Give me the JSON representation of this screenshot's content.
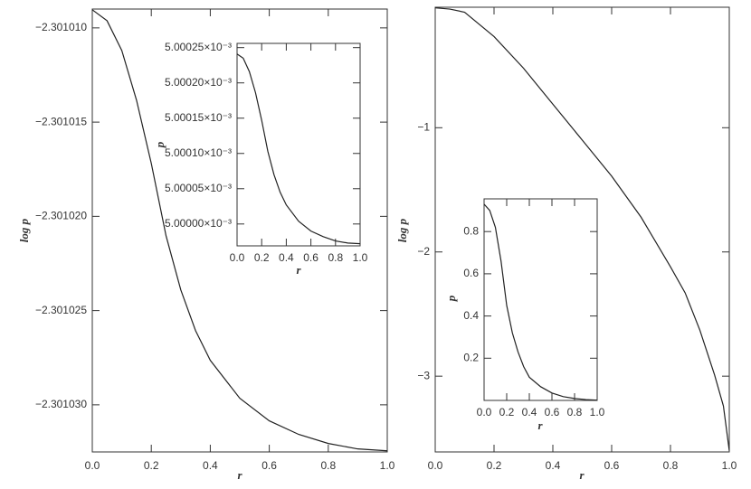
{
  "chart_data": [
    {
      "type": "line",
      "x_label": "r",
      "y_label": "log p",
      "x": [
        0,
        0.05,
        0.1,
        0.15,
        0.2,
        0.25,
        0.3,
        0.35,
        0.4,
        0.5,
        0.6,
        0.7,
        0.8,
        0.9,
        1.0
      ],
      "values": [
        -2.30100904,
        -2.30100962,
        -2.3010112,
        -2.30101384,
        -2.30101719,
        -2.30102103,
        -2.3010239,
        -2.30102606,
        -2.30102764,
        -2.30102965,
        -2.30103085,
        -2.30103157,
        -2.30103205,
        -2.30103234,
        -2.30103244
      ],
      "color": "#222222",
      "xlim": [
        0,
        1
      ],
      "ylim": [
        -2.3010325,
        -2.301009
      ],
      "xticks": [
        {
          "value": 0,
          "label": "0.0"
        },
        {
          "value": 0.2,
          "label": "0.2"
        },
        {
          "value": 0.4,
          "label": "0.4"
        },
        {
          "value": 0.6,
          "label": "0.6"
        },
        {
          "value": 0.8,
          "label": "0.8"
        },
        {
          "value": 1,
          "label": "1.0"
        }
      ],
      "yticks": [
        {
          "value": -2.30101,
          "label": "−2.301010"
        },
        {
          "value": -2.301015,
          "label": "−2.301015"
        },
        {
          "value": -2.30102,
          "label": "−2.301020"
        },
        {
          "value": -2.301025,
          "label": "−2.301025"
        },
        {
          "value": -2.30103,
          "label": "−2.301030"
        }
      ]
    },
    {
      "type": "line",
      "x_label": "r",
      "y_label": "p",
      "x": [
        0,
        0.05,
        0.1,
        0.15,
        0.2,
        0.25,
        0.3,
        0.35,
        0.4,
        0.5,
        0.6,
        0.7,
        0.8,
        0.9,
        1.0
      ],
      "values": [
        0.005000241,
        0.005000235,
        0.005000216,
        0.005000186,
        0.005000147,
        0.005000103,
        0.00500007,
        0.005000045,
        0.005000027,
        0.005000004,
        0.00499999,
        0.004999982,
        0.004999976,
        0.004999973,
        0.004999972
      ],
      "color": "#222222",
      "xlim": [
        0,
        1
      ],
      "ylim": [
        0.004999969,
        0.005000256
      ],
      "xticks": [
        {
          "value": 0,
          "label": "0.0"
        },
        {
          "value": 0.2,
          "label": "0.2"
        },
        {
          "value": 0.4,
          "label": "0.4"
        },
        {
          "value": 0.6,
          "label": "0.6"
        },
        {
          "value": 0.8,
          "label": "0.8"
        },
        {
          "value": 1,
          "label": "1.0"
        }
      ],
      "yticks": [
        {
          "value": 0.005,
          "label": "5.00000×10⁻³"
        },
        {
          "value": 0.00500005,
          "label": "5.00005×10⁻³"
        },
        {
          "value": 0.0050001,
          "label": "5.00010×10⁻³"
        },
        {
          "value": 0.00500015,
          "label": "5.00015×10⁻³"
        },
        {
          "value": 0.0050002,
          "label": "5.00020×10⁻³"
        },
        {
          "value": 0.00500025,
          "label": "5.00025×10⁻³"
        }
      ]
    },
    {
      "type": "line",
      "x_label": "r",
      "y_label": "log p",
      "x": [
        0,
        0.05,
        0.1,
        0.2,
        0.3,
        0.4,
        0.5,
        0.6,
        0.7,
        0.8,
        0.85,
        0.9,
        0.95,
        0.98,
        1.0
      ],
      "values": [
        -0.035,
        -0.045,
        -0.07,
        -0.266,
        -0.52,
        -0.81,
        -1.1,
        -1.39,
        -1.72,
        -2.12,
        -2.33,
        -2.63,
        -2.99,
        -3.24,
        -3.6
      ],
      "color": "#222222",
      "xlim": [
        0,
        1
      ],
      "ylim": [
        -3.61,
        -0.03
      ],
      "xticks": [
        {
          "value": 0,
          "label": "0.0"
        },
        {
          "value": 0.2,
          "label": "0.2"
        },
        {
          "value": 0.4,
          "label": "0.4"
        },
        {
          "value": 0.6,
          "label": "0.6"
        },
        {
          "value": 0.8,
          "label": "0.8"
        },
        {
          "value": 1,
          "label": "1.0"
        }
      ],
      "yticks": [
        {
          "value": -1,
          "label": "−1"
        },
        {
          "value": -2,
          "label": "−2"
        },
        {
          "value": -3,
          "label": "−3"
        }
      ]
    },
    {
      "type": "line",
      "x_label": "r",
      "y_label": "p",
      "x": [
        0,
        0.05,
        0.1,
        0.15,
        0.2,
        0.25,
        0.3,
        0.35,
        0.4,
        0.5,
        0.6,
        0.7,
        0.8,
        0.9,
        1.0
      ],
      "values": [
        0.93,
        0.9,
        0.82,
        0.66,
        0.45,
        0.32,
        0.23,
        0.16,
        0.11,
        0.065,
        0.035,
        0.018,
        0.009,
        0.004,
        0.001
      ],
      "color": "#222222",
      "xlim": [
        0,
        1
      ],
      "ylim": [
        0,
        0.955
      ],
      "xticks": [
        {
          "value": 0,
          "label": "0.0"
        },
        {
          "value": 0.2,
          "label": "0.2"
        },
        {
          "value": 0.4,
          "label": "0.4"
        },
        {
          "value": 0.6,
          "label": "0.6"
        },
        {
          "value": 0.8,
          "label": "0.8"
        },
        {
          "value": 1,
          "label": "1.0"
        }
      ],
      "yticks": [
        0.2,
        0.4,
        0.6,
        0.8
      ]
    }
  ]
}
